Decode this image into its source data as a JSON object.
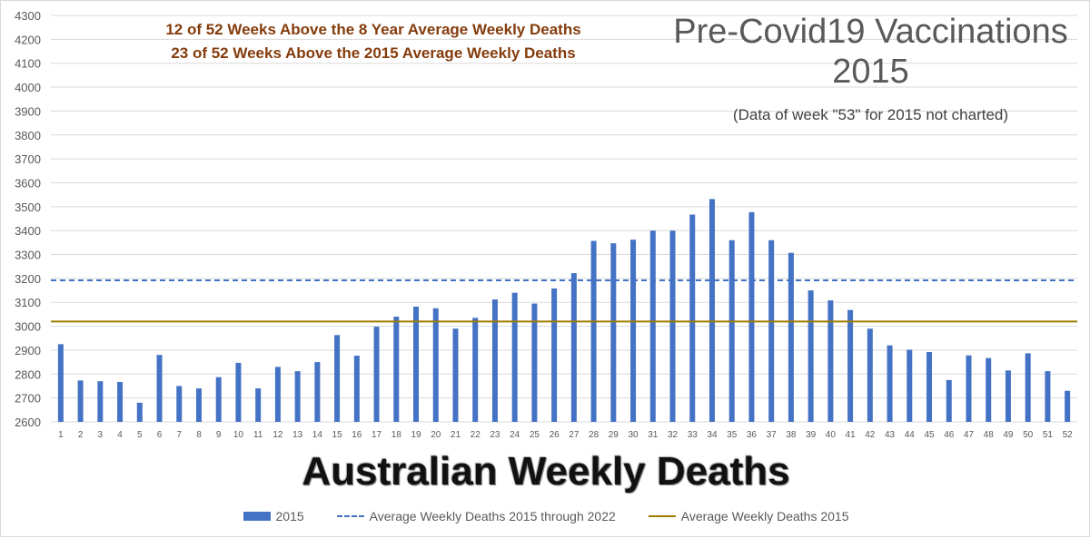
{
  "annotations": {
    "note_1": "12 of 52 Weeks Above the 8 Year Average Weekly Deaths",
    "note_2": "23 of 52 Weeks Above the 2015 Average Weekly Deaths",
    "title_line_1": "Pre-Covid19 Vaccinations",
    "title_line_2": "2015",
    "subtitle": "(Data of week \"53\" for 2015 not charted)",
    "main_title": "Australian Weekly Deaths"
  },
  "colors": {
    "bars": "#4472c4",
    "avg_8yr": "#4472c4",
    "avg_2015": "#a07b00",
    "grid": "#d9d9d9",
    "tick_text": "#595959"
  },
  "chart_data": {
    "type": "bar",
    "categories": [
      1,
      2,
      3,
      4,
      5,
      6,
      7,
      8,
      9,
      10,
      11,
      12,
      13,
      14,
      15,
      16,
      17,
      18,
      19,
      20,
      21,
      22,
      23,
      24,
      25,
      26,
      27,
      28,
      29,
      30,
      31,
      32,
      33,
      34,
      35,
      36,
      37,
      38,
      39,
      40,
      41,
      42,
      43,
      44,
      45,
      46,
      47,
      48,
      49,
      50,
      51,
      52
    ],
    "series": [
      {
        "name": "2015",
        "values": [
          2925,
          2773,
          2770,
          2767,
          2680,
          2880,
          2750,
          2740,
          2787,
          2847,
          2740,
          2830,
          2812,
          2850,
          2963,
          2877,
          2998,
          3040,
          3082,
          3075,
          2990,
          3035,
          3112,
          3140,
          3095,
          3158,
          3222,
          3357,
          3347,
          3362,
          3400,
          3400,
          3467,
          3532,
          3360,
          3477,
          3360,
          3307,
          3150,
          3108,
          3068,
          2990,
          2920,
          2902,
          2892,
          2775,
          2878,
          2867,
          2815,
          2887,
          2812,
          2730
        ]
      }
    ],
    "reference_lines": [
      {
        "name": "Average Weekly Deaths 2015 through 2022",
        "value": 3192,
        "style": "dashed"
      },
      {
        "name": "Average Weekly Deaths 2015",
        "value": 3020,
        "style": "solid"
      }
    ],
    "ylim": [
      2600,
      4300
    ],
    "yticks": [
      2600,
      2700,
      2800,
      2900,
      3000,
      3100,
      3200,
      3300,
      3400,
      3500,
      3600,
      3700,
      3800,
      3900,
      4000,
      4100,
      4200,
      4300
    ],
    "grid": true,
    "legend_position": "bottom",
    "legend": [
      "2015",
      "Average Weekly Deaths 2015 through 2022",
      "Average Weekly Deaths 2015"
    ]
  }
}
